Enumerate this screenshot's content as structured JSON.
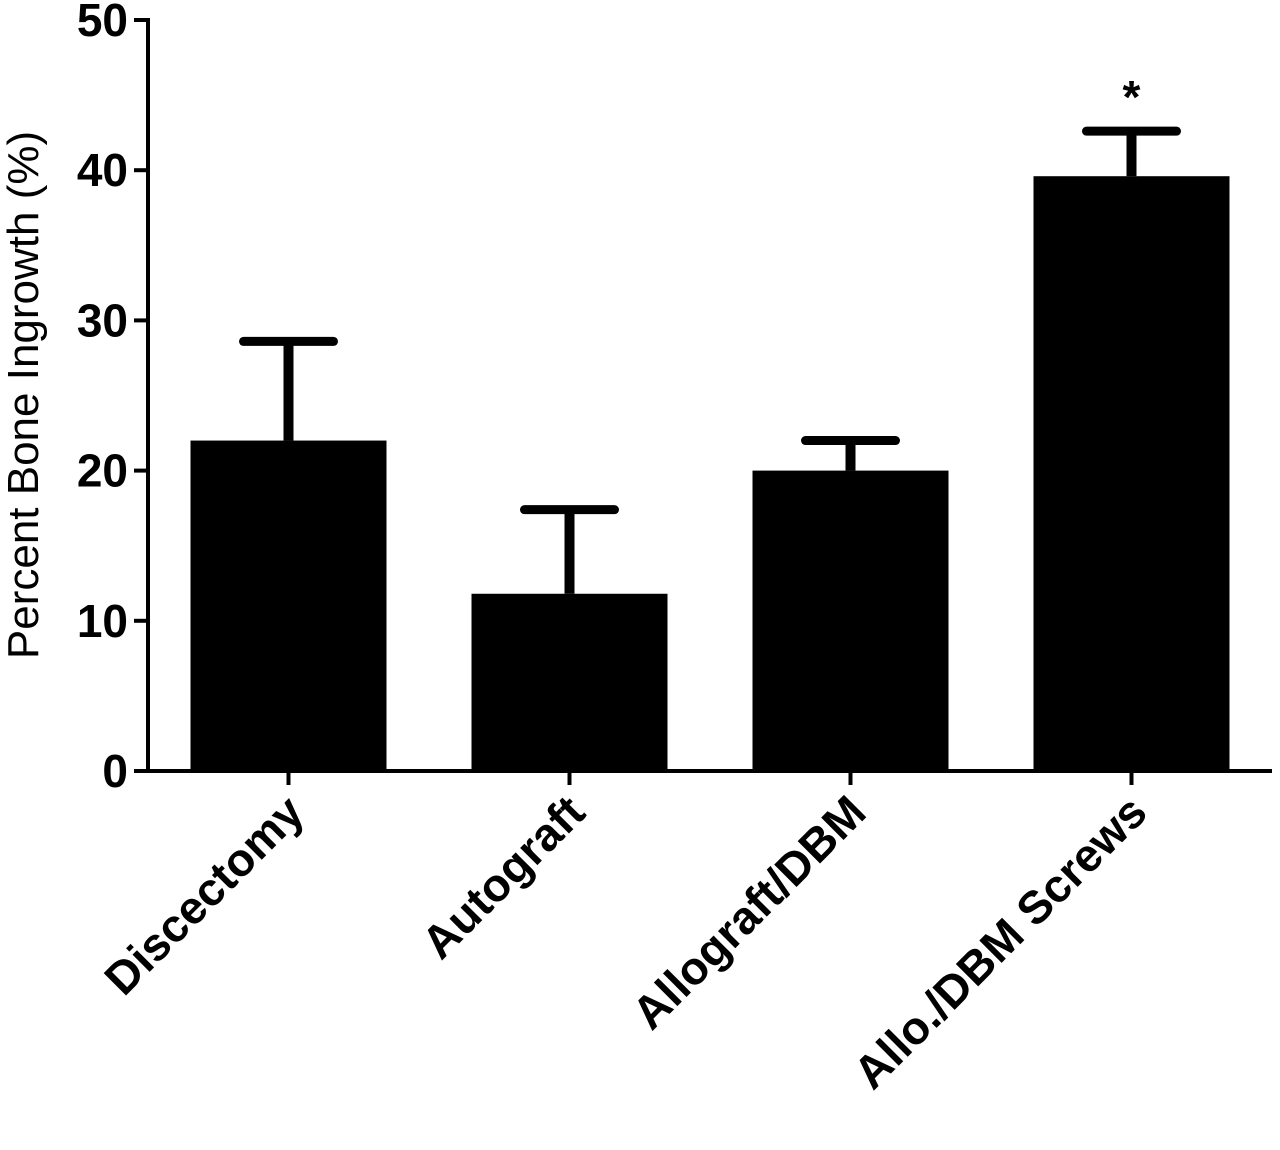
{
  "chart_data": {
    "type": "bar",
    "title": "",
    "xlabel": "",
    "ylabel": "Percent Bone Ingrowth (%)",
    "ylim": [
      0,
      50
    ],
    "yticks": [
      0,
      10,
      20,
      30,
      40,
      50
    ],
    "ytick_labels": [
      "0",
      "10",
      "20",
      "30",
      "40",
      "50"
    ],
    "categories": [
      "Discectomy",
      "Autograft",
      "Allograft/DBM",
      "Allo./DBM Screws"
    ],
    "values": [
      22,
      11.8,
      20,
      39.6
    ],
    "error_upper": [
      6.6,
      5.6,
      2,
      3
    ],
    "annotations": [
      "",
      "",
      "",
      "*"
    ],
    "bar_color": "#000000",
    "grid": false,
    "legend": false
  }
}
